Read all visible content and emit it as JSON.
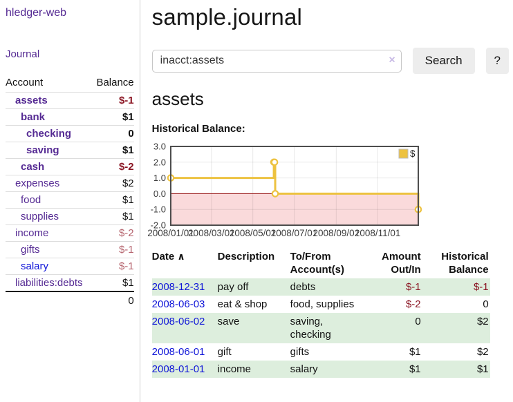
{
  "sidebar": {
    "app_title": "hledger-web",
    "nav": {
      "journal_label": "Journal"
    },
    "accounts_table": {
      "headers": {
        "account": "Account",
        "balance": "Balance"
      },
      "rows": [
        {
          "name": "assets",
          "balance": "$-1",
          "depth": 1,
          "in_query": true,
          "balance_tone": "negative-strong",
          "link_tone": "visited"
        },
        {
          "name": "bank",
          "balance": "$1",
          "depth": 2,
          "in_query": true,
          "balance_tone": "normal",
          "link_tone": "visited"
        },
        {
          "name": "checking",
          "balance": "0",
          "depth": 3,
          "in_query": true,
          "balance_tone": "normal",
          "link_tone": "visited"
        },
        {
          "name": "saving",
          "balance": "$1",
          "depth": 3,
          "in_query": true,
          "balance_tone": "normal",
          "link_tone": "visited"
        },
        {
          "name": "cash",
          "balance": "$-2",
          "depth": 2,
          "in_query": true,
          "balance_tone": "negative-strong",
          "link_tone": "visited"
        },
        {
          "name": "expenses",
          "balance": "$2",
          "depth": 1,
          "in_query": false,
          "balance_tone": "normal",
          "link_tone": "visited"
        },
        {
          "name": "food",
          "balance": "$1",
          "depth": 2,
          "in_query": false,
          "balance_tone": "normal",
          "link_tone": "visited"
        },
        {
          "name": "supplies",
          "balance": "$1",
          "depth": 2,
          "in_query": false,
          "balance_tone": "normal",
          "link_tone": "visited"
        },
        {
          "name": "income",
          "balance": "$-2",
          "depth": 1,
          "in_query": false,
          "balance_tone": "negative-soft",
          "link_tone": "visited"
        },
        {
          "name": "gifts",
          "balance": "$-1",
          "depth": 2,
          "in_query": false,
          "balance_tone": "negative-soft",
          "link_tone": "visited"
        },
        {
          "name": "salary",
          "balance": "$-1",
          "depth": 2,
          "in_query": false,
          "balance_tone": "negative-soft",
          "link_tone": "unvisited"
        },
        {
          "name": "liabilities:debts",
          "balance": "$1",
          "depth": 1,
          "in_query": false,
          "balance_tone": "normal",
          "link_tone": "visited"
        }
      ],
      "total": "0"
    }
  },
  "main": {
    "title": "sample.journal",
    "search": {
      "value": "inacct:assets",
      "clear_icon": "×",
      "search_button_label": "Search",
      "help_button_label": "?"
    },
    "account_heading": "assets",
    "chart_heading": "Historical Balance:"
  },
  "chart_data": {
    "type": "line",
    "style": "step",
    "title": "Historical Balance",
    "series": [
      {
        "name": "$",
        "color": "#edc240",
        "points": [
          [
            "2008-01-01",
            1
          ],
          [
            "2008-06-01",
            2
          ],
          [
            "2008-06-02",
            2
          ],
          [
            "2008-06-03",
            0
          ],
          [
            "2008-12-31",
            -1
          ]
        ]
      }
    ],
    "xlim": [
      "2008-01-01",
      "2008-12-31"
    ],
    "ylim": [
      -2,
      3
    ],
    "y_ticks": [
      3.0,
      2.0,
      1.0,
      0.0,
      -1.0,
      -2.0
    ],
    "x_ticks": [
      "2008/01/01",
      "2008/03/01",
      "2008/05/01",
      "2008/07/01",
      "2008/09/01",
      "2008/11/01"
    ],
    "legend": {
      "position": "top-right",
      "label": "$"
    },
    "grid": true,
    "negative_region_color": "#fadadb",
    "zero_line_color": "#8f0000",
    "border_color": "#4d4d4d",
    "grid_color": "rgba(0,0,0,0.09)",
    "tick_label_color": "#3c3c3c"
  },
  "register_table": {
    "headers": {
      "date": "Date",
      "sort_icon": "∧",
      "description": "Description",
      "accounts": "To/From Account(s)",
      "amount": "Amount Out/In",
      "balance": "Historical Balance"
    },
    "rows": [
      {
        "date": "2008-12-31",
        "description": "pay off",
        "accounts": "debts",
        "amount": "$-1",
        "balance": "$-1",
        "amount_negative": true,
        "balance_negative": true
      },
      {
        "date": "2008-06-03",
        "description": "eat & shop",
        "accounts": "food, supplies",
        "amount": "$-2",
        "balance": "0",
        "amount_negative": true,
        "balance_negative": false
      },
      {
        "date": "2008-06-02",
        "description": "save",
        "accounts": "saving, checking",
        "amount": "0",
        "balance": "$2",
        "amount_negative": false,
        "balance_negative": false
      },
      {
        "date": "2008-06-01",
        "description": "gift",
        "accounts": "gifts",
        "amount": "$1",
        "balance": "$2",
        "amount_negative": false,
        "balance_negative": false
      },
      {
        "date": "2008-01-01",
        "description": "income",
        "accounts": "salary",
        "amount": "$1",
        "balance": "$1",
        "amount_negative": false,
        "balance_negative": false
      }
    ]
  },
  "colors": {
    "link_visited": "#552a93",
    "link_unvisited": "#1016d8",
    "negative_strong": "#8a1422",
    "negative_soft": "#b5636d",
    "stripe_green": "#ddeedd",
    "accent_gold": "#edc240"
  }
}
